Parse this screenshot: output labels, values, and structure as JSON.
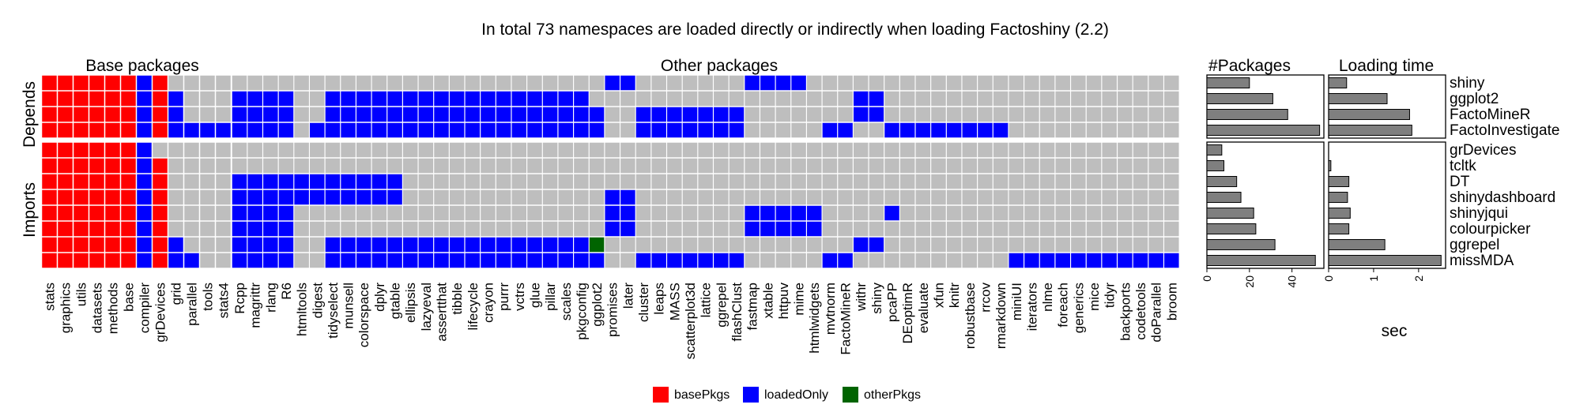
{
  "chart_data": {
    "type": "heatmap",
    "title": "In total 73 namespaces are loaded directly or indirectly when loading Factoshiny (2.2)",
    "panels": {
      "base": "Base packages",
      "other": "Other packages",
      "npkg": "#Packages",
      "time": "Loading time"
    },
    "row_groups": [
      "Depends",
      "Imports"
    ],
    "time_xlabel": "sec",
    "colors": {
      "basePkgs": "#ff0000",
      "loadedOnly": "#0000ff",
      "otherPkgs": "#006400",
      "empty": "#bebebe",
      "bar": "#7f7f7f"
    },
    "legend": [
      {
        "key": "basePkgs",
        "label": "basePkgs"
      },
      {
        "key": "loadedOnly",
        "label": "loadedOnly"
      },
      {
        "key": "otherPkgs",
        "label": "otherPkgs"
      }
    ],
    "rows": [
      {
        "name": "shiny",
        "group": 0,
        "npkg": 20,
        "time": 0.4
      },
      {
        "name": "ggplot2",
        "group": 0,
        "npkg": 31,
        "time": 1.3
      },
      {
        "name": "FactoMineR",
        "group": 0,
        "npkg": 38,
        "time": 1.8
      },
      {
        "name": "FactoInvestigate",
        "group": 0,
        "npkg": 53,
        "time": 1.85
      },
      {
        "name": "grDevices",
        "group": 1,
        "npkg": 7,
        "time": 0.0
      },
      {
        "name": "tcltk",
        "group": 1,
        "npkg": 8,
        "time": 0.05
      },
      {
        "name": "DT",
        "group": 1,
        "npkg": 14,
        "time": 0.45
      },
      {
        "name": "shinydashboard",
        "group": 1,
        "npkg": 16,
        "time": 0.42
      },
      {
        "name": "shinyjqui",
        "group": 1,
        "npkg": 22,
        "time": 0.48
      },
      {
        "name": "colourpicker",
        "group": 1,
        "npkg": 23,
        "time": 0.45
      },
      {
        "name": "ggrepel",
        "group": 1,
        "npkg": 32,
        "time": 1.25
      },
      {
        "name": "missMDA",
        "group": 1,
        "npkg": 51,
        "time": 2.5
      }
    ],
    "npkg_ticks": [
      0,
      20,
      40
    ],
    "npkg_xlim": [
      0,
      55
    ],
    "time_ticks": [
      0,
      1,
      2
    ],
    "time_xlim": [
      0,
      2.6
    ],
    "base_cols": [
      "stats",
      "graphics",
      "utils",
      "datasets",
      "methods",
      "base",
      "compiler",
      "grDevices",
      "grid",
      "parallel",
      "tools",
      "stats4"
    ],
    "other_cols": [
      "Rcpp",
      "magrittr",
      "rlang",
      "R6",
      "htmltools",
      "digest",
      "tidyselect",
      "munsell",
      "colorspace",
      "dplyr",
      "gtable",
      "ellipsis",
      "lazyeval",
      "assertthat",
      "tibble",
      "lifecycle",
      "crayon",
      "purrr",
      "vctrs",
      "glue",
      "pillar",
      "scales",
      "pkgconfig",
      "ggplot2",
      "promises",
      "later",
      "cluster",
      "leaps",
      "MASS",
      "scatterplot3d",
      "lattice",
      "ggrepel",
      "flashClust",
      "fastmap",
      "xtable",
      "httpuv",
      "mime",
      "htmlwidgets",
      "mvtnorm",
      "FactoMineR",
      "withr",
      "shiny",
      "pcaPP",
      "DEoptimR",
      "evaluate",
      "xfun",
      "knitr",
      "robustbase",
      "rrcov",
      "rmarkdown",
      "miniUI",
      "iterators",
      "nlme",
      "foreach",
      "generics",
      "mice",
      "tidyr",
      "backports",
      "codetools",
      "doParallel",
      "broom"
    ],
    "base_matrix": [
      "RRRRRRBR....",
      "RRRRRRBRB...",
      "RRRRRRBRB...",
      "RRRRRRBRBBBB",
      "RRRRRRB.....",
      "RRRRRRBR....",
      "RRRRRRBR....",
      "RRRRRRBR....",
      "RRRRRRBR....",
      "RRRRRRBR....",
      "RRRRRRBRB...",
      "RRRRRRBRBB.."
    ],
    "other_matrix": [
      "........................BB.......BBBB........................",
      "BBBB..BBBBBBBBBBBBBBBBB.................BB...................",
      "BBBB..BBBBBBBBBBBBBBBBBB..BBBBBBB.......BB...................",
      "BBBB.BBBBBBBBBBBBBBBBBBB..BBBBBBB.....BB..BBBBBBBB...........",
      ".............................................................",
      ".............................................................",
      "BBBBBBBBBBB..................................................",
      "BBBBBBBBBBB.............BB...................................",
      "BBBB....................BB.......BBBBB....B..................",
      "BBBB....................BB.......BBBBB.......................",
      "BBBB..BBBBBBBBBBBBBBBBBG................BB...................",
      "BBBB..BBBBBBBBBBBBBBBBBB..BBBBBBB.....BB..........BBBBBBBBBBB"
    ]
  }
}
